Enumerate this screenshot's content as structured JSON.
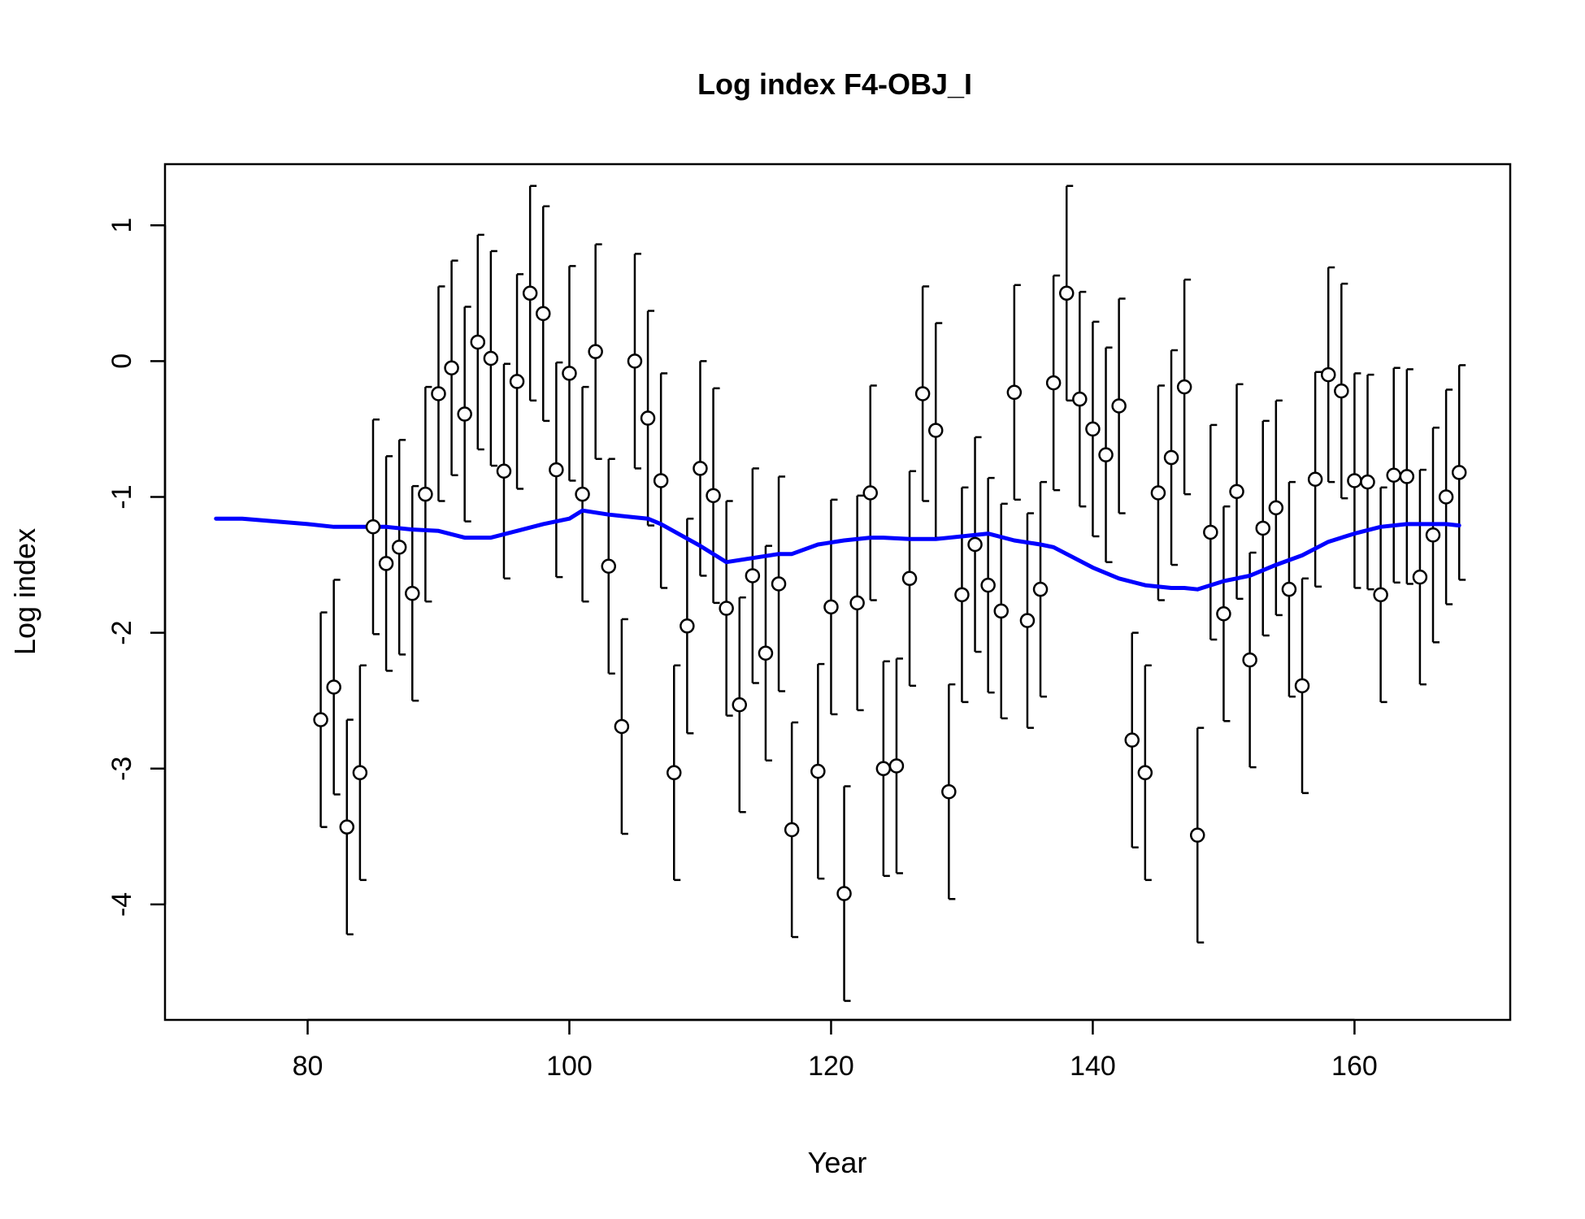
{
  "chart_data": {
    "type": "scatter",
    "title": "Log index F4-OBJ_I",
    "xlabel": "Year",
    "ylabel": "Log index",
    "xlim": [
      69.1,
      171.9
    ],
    "ylim": [
      -4.85,
      1.45
    ],
    "xticks": [
      80,
      100,
      120,
      140,
      160
    ],
    "yticks": [
      -4,
      -3,
      -2,
      -1,
      0,
      1
    ],
    "xtick_labels": [
      "80",
      "100",
      "120",
      "140",
      "160"
    ],
    "ytick_labels": [
      "-4",
      "-3",
      "-2",
      "-1",
      "0",
      "1"
    ],
    "grid": false,
    "legend": "none",
    "colors": {
      "points": "#000000",
      "fit_line": "#0000ff"
    },
    "series": [
      {
        "kind": "observed_with_error_bars",
        "halfwidth": 0.79,
        "x": [
          81,
          82,
          83,
          84,
          85,
          86,
          87,
          88,
          89,
          90,
          91,
          92,
          93,
          94,
          95,
          96,
          97,
          98,
          99,
          100,
          101,
          102,
          103,
          104,
          105,
          106,
          107,
          108,
          109,
          110,
          111,
          112,
          113,
          114,
          115,
          116,
          117,
          119,
          120,
          121,
          122,
          123,
          124,
          125,
          126,
          127,
          128,
          129,
          130,
          131,
          132,
          133,
          134,
          135,
          136,
          137,
          138,
          139,
          140,
          141,
          142,
          143,
          144,
          145,
          146,
          147,
          148,
          149,
          150,
          151,
          152,
          153,
          154,
          155,
          156,
          157,
          158,
          159,
          160,
          161,
          162,
          163,
          164,
          165,
          166,
          167,
          168
        ],
        "y": [
          -2.64,
          -2.4,
          -3.43,
          -3.03,
          -1.22,
          -1.49,
          -1.37,
          -1.71,
          -0.98,
          -0.24,
          -0.05,
          -0.39,
          0.14,
          0.02,
          -0.81,
          -0.15,
          0.5,
          0.35,
          -0.8,
          -0.09,
          -0.98,
          0.07,
          -1.51,
          -2.69,
          0.0,
          -0.42,
          -0.88,
          -3.03,
          -1.95,
          -0.79,
          -0.99,
          -1.82,
          -2.53,
          -1.58,
          -2.15,
          -1.64,
          -3.45,
          -3.02,
          -1.81,
          -3.92,
          -1.78,
          -0.97,
          -3.0,
          -2.98,
          -1.6,
          -0.24,
          -0.51,
          -3.17,
          -1.72,
          -1.35,
          -1.65,
          -1.84,
          -0.23,
          -1.91,
          -1.68,
          -0.16,
          0.5,
          -0.28,
          -0.5,
          -0.69,
          -0.33,
          -2.79,
          -3.03,
          -0.97,
          -0.71,
          -0.19,
          -3.49,
          -1.26,
          -1.86,
          -0.96,
          -2.2,
          -1.23,
          -1.08,
          -1.68,
          -2.39,
          -0.87,
          -0.1,
          -0.22,
          -0.88,
          -0.89,
          -1.72,
          -0.84,
          -0.85,
          -1.59,
          -1.28,
          -1.0,
          -0.82
        ]
      },
      {
        "kind": "fit_line",
        "x": [
          73,
          75,
          80,
          82,
          84,
          86,
          88,
          90,
          92,
          94,
          96,
          98,
          99,
          100,
          101,
          103,
          105,
          106,
          107,
          110,
          112,
          114,
          116,
          117,
          119,
          121,
          123,
          124,
          126,
          128,
          130,
          132,
          134,
          136,
          137,
          140,
          142,
          144,
          146,
          147,
          148,
          150,
          152,
          154,
          156,
          158,
          160,
          162,
          164,
          166,
          167,
          168
        ],
        "y": [
          -1.16,
          -1.16,
          -1.2,
          -1.22,
          -1.22,
          -1.22,
          -1.24,
          -1.25,
          -1.3,
          -1.3,
          -1.25,
          -1.2,
          -1.18,
          -1.16,
          -1.1,
          -1.13,
          -1.15,
          -1.16,
          -1.2,
          -1.36,
          -1.48,
          -1.45,
          -1.42,
          -1.42,
          -1.35,
          -1.32,
          -1.3,
          -1.3,
          -1.31,
          -1.31,
          -1.29,
          -1.27,
          -1.32,
          -1.35,
          -1.37,
          -1.52,
          -1.6,
          -1.65,
          -1.67,
          -1.67,
          -1.68,
          -1.62,
          -1.58,
          -1.5,
          -1.43,
          -1.33,
          -1.27,
          -1.22,
          -1.2,
          -1.2,
          -1.2,
          -1.21
        ]
      }
    ]
  }
}
